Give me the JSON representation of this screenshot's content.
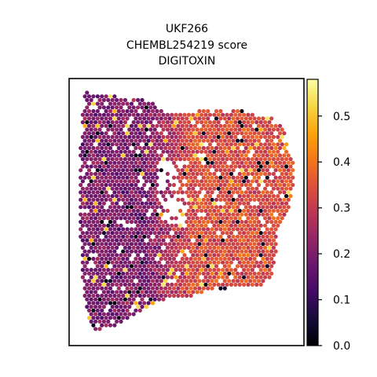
{
  "chart_data": {
    "type": "scatter",
    "title_lines": [
      "UKF266",
      "CHEMBL254219 score",
      "DIGITOXIN"
    ],
    "xlabel": "",
    "ylabel": "",
    "grid": false,
    "colormap": "inferno",
    "colorbar": {
      "range": [
        0.0,
        0.58
      ],
      "ticks": [
        0.0,
        0.1,
        0.2,
        0.3,
        0.4,
        0.5
      ],
      "tick_labels": [
        "0.0",
        "0.1",
        "0.2",
        "0.3",
        "0.4",
        "0.5"
      ]
    },
    "tissue_region": {
      "description": "spatial transcriptomics spots, score per spot",
      "left_lobe_mean": 0.2,
      "right_lobe_mean": 0.34
    }
  }
}
